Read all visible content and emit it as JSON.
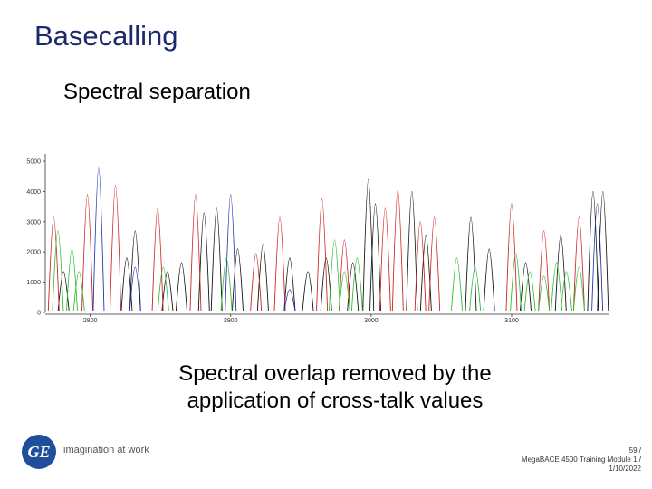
{
  "title": "Basecalling",
  "bullet": "Spectral separation",
  "caption": [
    "Spectral overlap removed by the",
    "application of cross-talk values"
  ],
  "logo": {
    "mark": "GE",
    "tagline": "imagination at work"
  },
  "footer": [
    "59 /",
    "MegaBACE 4500 Training Module 1 /",
    "1/10/2022"
  ],
  "chart_data": {
    "type": "peaks",
    "xlim": [
      2768,
      3169
    ],
    "ylim": [
      0,
      5000
    ],
    "xticks": [
      2800,
      2900,
      3000,
      3100
    ],
    "yticks": [
      0,
      1000,
      2000,
      3000,
      4000,
      5000
    ],
    "series": [
      {
        "color": "#111111",
        "x": [
          2781,
          2826,
          2832,
          2855,
          2865,
          2881,
          2890,
          2905,
          2923,
          2942,
          2955,
          2968,
          2987,
          2998,
          3003,
          3029,
          3039,
          3071,
          3084,
          3110,
          3135,
          3158,
          3165
        ],
        "values": [
          1350,
          1800,
          2700,
          1350,
          1650,
          3300,
          3450,
          2100,
          2250,
          1800,
          1350,
          1800,
          1650,
          4400,
          3600,
          4000,
          2550,
          3150,
          2100,
          1650,
          2550,
          4000,
          4000
        ]
      },
      {
        "color": "#cc2222",
        "x": [
          2774,
          2798,
          2818,
          2848,
          2875,
          2918,
          2935,
          2965,
          2981,
          3010,
          3019,
          3035,
          3045,
          3100,
          3123,
          3148
        ],
        "values": [
          3150,
          3900,
          4200,
          3450,
          3900,
          1950,
          3150,
          3750,
          2400,
          3450,
          4050,
          3000,
          3150,
          3600,
          2700,
          3150
        ]
      },
      {
        "color": "#2233aa",
        "x": [
          2806,
          2832,
          2900,
          2942,
          3161
        ],
        "values": [
          4800,
          1500,
          3900,
          750,
          3600
        ]
      },
      {
        "color": "#33bb33",
        "x": [
          2777,
          2787,
          2792,
          2852,
          2897,
          2974,
          2981,
          2990,
          3061,
          3074,
          3103,
          3113,
          3123,
          3132,
          3139,
          3148
        ],
        "values": [
          2700,
          2100,
          1350,
          1500,
          1800,
          2400,
          1350,
          1800,
          1800,
          1500,
          1950,
          1350,
          1200,
          1650,
          1350,
          1500
        ]
      }
    ]
  }
}
